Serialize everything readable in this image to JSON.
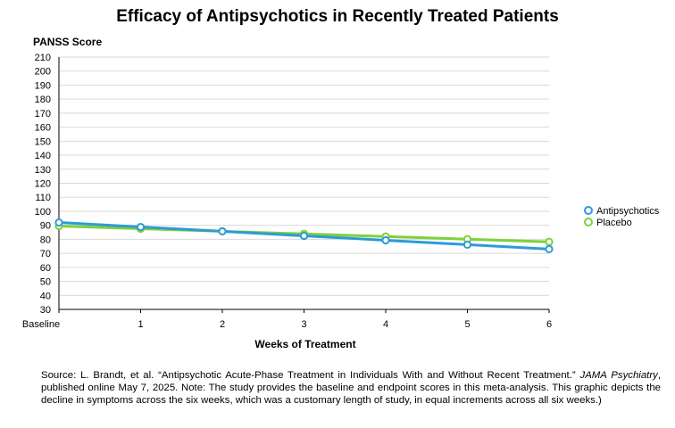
{
  "chart_data": {
    "type": "line",
    "title": "Efficacy of Antipsychotics in Recently Treated Patients",
    "ylabel": "PANSS Score",
    "xlabel": "Weeks of Treatment",
    "categories": [
      "Baseline",
      "1",
      "2",
      "3",
      "4",
      "5",
      "6"
    ],
    "ylim": [
      30,
      210
    ],
    "yticks": [
      30,
      40,
      50,
      60,
      70,
      80,
      90,
      100,
      110,
      120,
      130,
      140,
      150,
      160,
      170,
      180,
      190,
      200,
      210
    ],
    "grid": true,
    "legend_position": "right",
    "series": [
      {
        "name": "Antipsychotics",
        "color": "#2e9bd6",
        "values": [
          92,
          88.8,
          85.7,
          82.5,
          79.3,
          76.2,
          73
        ]
      },
      {
        "name": "Placebo",
        "color": "#7ed13c",
        "values": [
          89.5,
          87.6,
          85.7,
          83.9,
          82,
          80.1,
          78.2
        ]
      }
    ]
  },
  "source": {
    "prefix": "Source:  L. Brandt, et al. “Antipsychotic Acute-Phase Treatment in Individuals With and Without Recent Treatment.” ",
    "journal": "JAMA Psychiatry",
    "suffix": ", published online May 7, 2025. Note: The study provides the baseline and endpoint scores in this meta-analysis. This graphic depicts the decline in symptoms across the six weeks, which was a customary length of study, in equal increments across all six weeks.)"
  }
}
